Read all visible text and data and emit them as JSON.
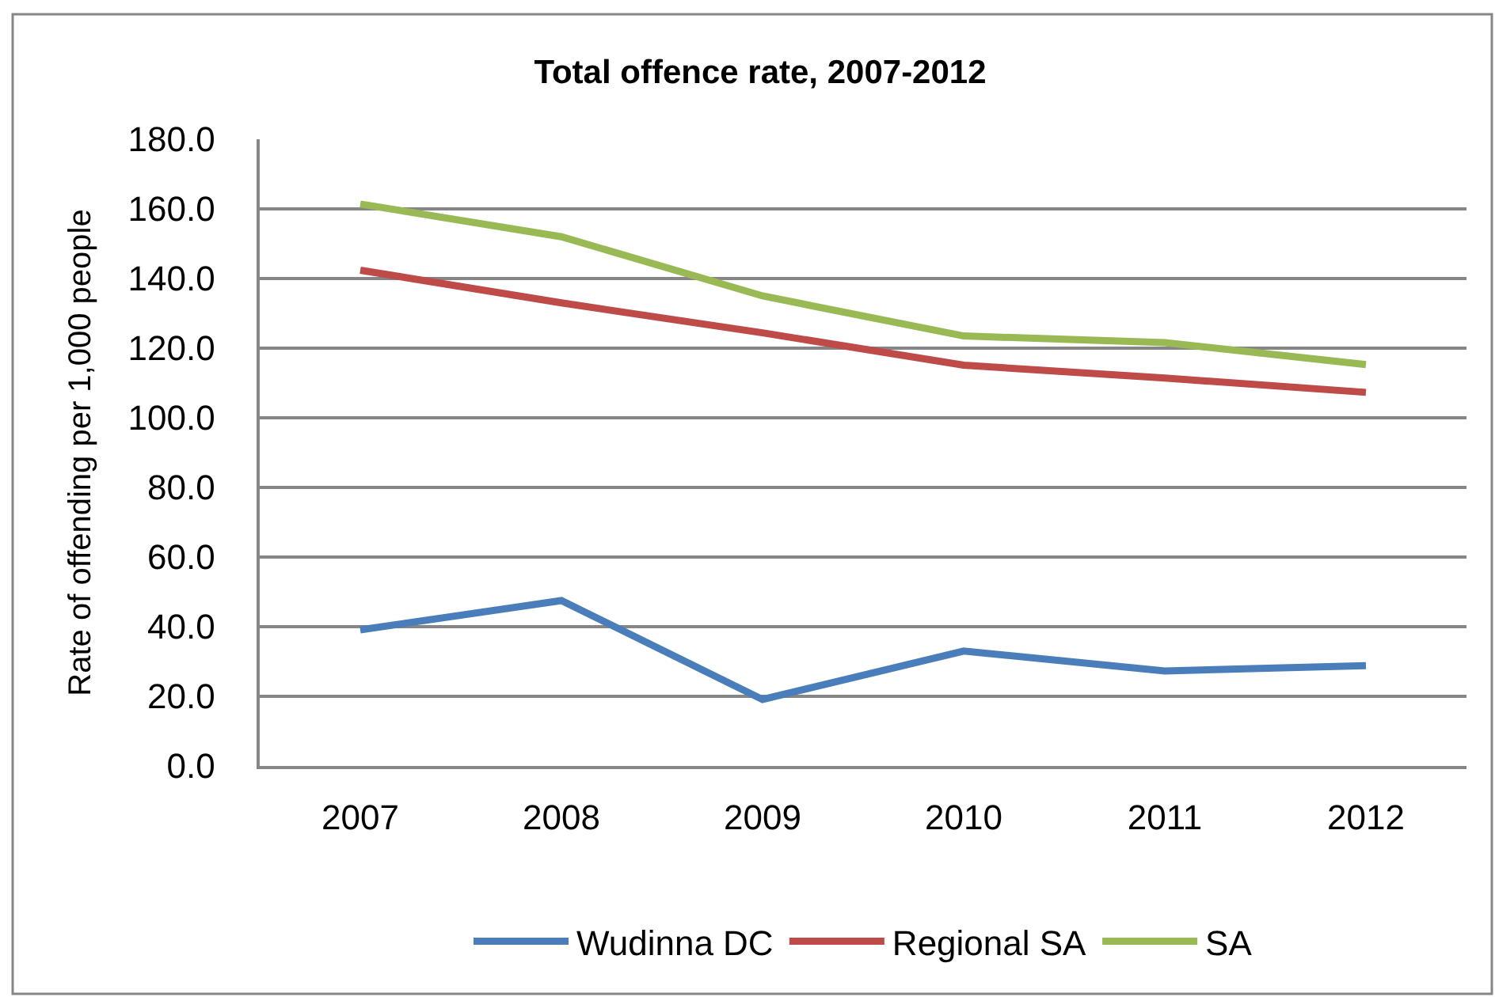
{
  "chart_data": {
    "type": "line",
    "title": "Total offence rate, 2007-2012",
    "ylabel": "Rate of offending per 1,000 people",
    "categories": [
      "2007",
      "2008",
      "2009",
      "2010",
      "2011",
      "2012"
    ],
    "series": [
      {
        "name": "Wudinna DC",
        "color": "#4a7ebb",
        "values": [
          39.1,
          47.5,
          19.1,
          33.0,
          27.3,
          28.8
        ]
      },
      {
        "name": "Regional SA",
        "color": "#be4b48",
        "values": [
          142.4,
          133.0,
          124.4,
          115.1,
          111.4,
          107.3
        ]
      },
      {
        "name": "SA",
        "color": "#98b954",
        "values": [
          161.4,
          152.0,
          135.0,
          123.5,
          121.6,
          115.3
        ]
      }
    ],
    "ylim": [
      0,
      180
    ],
    "yticks": [
      {
        "value": 0,
        "label": "0.0"
      },
      {
        "value": 20,
        "label": "20.0"
      },
      {
        "value": 40,
        "label": "40.0"
      },
      {
        "value": 60,
        "label": "60.0"
      },
      {
        "value": 80,
        "label": "80.0"
      },
      {
        "value": 100,
        "label": "100.0"
      },
      {
        "value": 120,
        "label": "120.0"
      },
      {
        "value": 140,
        "label": "140.0"
      },
      {
        "value": 160,
        "label": "160.0"
      },
      {
        "value": 180,
        "label": "180.0"
      }
    ],
    "grid": "y",
    "legend": "bottom"
  }
}
